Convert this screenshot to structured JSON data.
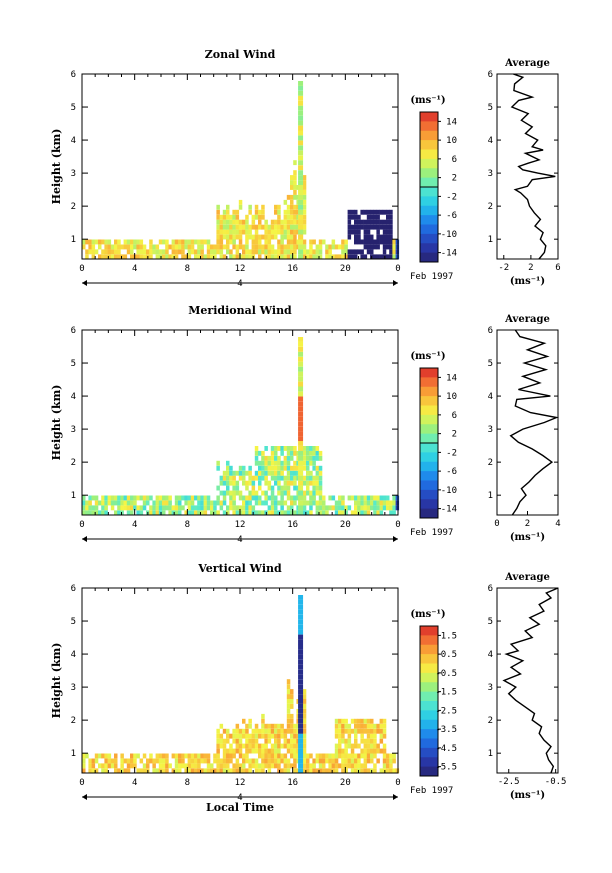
{
  "chart_data": [
    {
      "type": "heatmap",
      "title": "Zonal Wind",
      "xlabel": "",
      "ylabel": "Height (km)",
      "xlim": [
        0,
        24
      ],
      "ylim": [
        0.4,
        6
      ],
      "x_ticks": [
        "0",
        "4",
        "8",
        "12",
        "16",
        "20",
        "0"
      ],
      "y_ticks": [
        "1",
        "2",
        "3",
        "4",
        "5",
        "6"
      ],
      "day_label": "4",
      "date_label": "Feb 1997",
      "colorbar": {
        "unit": "(ms⁻¹)",
        "ticks": [
          "14",
          "10",
          "6",
          "2",
          "-2",
          "-6",
          "-10",
          "-14"
        ],
        "min": -16,
        "max": 16,
        "zero_line": true
      },
      "average": {
        "title": "Average",
        "xlabel": "(ms⁻¹)",
        "x_ticks": [
          "-2",
          "2",
          "6"
        ],
        "xlim": [
          -3,
          6
        ],
        "ylim": [
          0.4,
          6
        ],
        "profile": [
          [
            3.2,
            0.4
          ],
          [
            4.0,
            0.6
          ],
          [
            4.2,
            0.8
          ],
          [
            3.4,
            1.0
          ],
          [
            3.8,
            1.2
          ],
          [
            2.6,
            1.4
          ],
          [
            3.4,
            1.6
          ],
          [
            2.5,
            1.8
          ],
          [
            1.8,
            2.0
          ],
          [
            1.5,
            2.2
          ],
          [
            0.5,
            2.4
          ],
          [
            -0.3,
            2.5
          ],
          [
            1.5,
            2.6
          ],
          [
            2.2,
            2.8
          ],
          [
            5.6,
            2.9
          ],
          [
            3.0,
            3.0
          ],
          [
            0.8,
            3.1
          ],
          [
            0.2,
            3.2
          ],
          [
            1.6,
            3.3
          ],
          [
            3.2,
            3.4
          ],
          [
            1.2,
            3.6
          ],
          [
            3.8,
            3.7
          ],
          [
            2.2,
            3.8
          ],
          [
            3.0,
            4.0
          ],
          [
            1.2,
            4.2
          ],
          [
            2.2,
            4.4
          ],
          [
            0.6,
            4.6
          ],
          [
            1.6,
            4.8
          ],
          [
            -0.8,
            5.0
          ],
          [
            0.2,
            5.2
          ],
          [
            2.2,
            5.3
          ],
          [
            -0.5,
            5.5
          ],
          [
            -0.4,
            5.7
          ],
          [
            0.8,
            5.9
          ],
          [
            -0.6,
            6.0
          ]
        ]
      }
    },
    {
      "type": "heatmap",
      "title": "Meridional Wind",
      "xlabel": "",
      "ylabel": "Height (km)",
      "xlim": [
        0,
        24
      ],
      "ylim": [
        0.4,
        6
      ],
      "x_ticks": [
        "0",
        "4",
        "8",
        "12",
        "16",
        "20",
        "0"
      ],
      "y_ticks": [
        "1",
        "2",
        "3",
        "4",
        "5",
        "6"
      ],
      "day_label": "4",
      "date_label": "Feb 1997",
      "colorbar": {
        "unit": "(ms⁻¹)",
        "ticks": [
          "14",
          "10",
          "6",
          "2",
          "-2",
          "-6",
          "-10",
          "-14"
        ],
        "min": -16,
        "max": 16,
        "zero_line": true
      },
      "average": {
        "title": "Average",
        "xlabel": "(ms⁻¹)",
        "x_ticks": [
          "0",
          "2",
          "4"
        ],
        "xlim": [
          0,
          4
        ],
        "ylim": [
          0.4,
          6
        ],
        "profile": [
          [
            1.0,
            0.4
          ],
          [
            1.3,
            0.6
          ],
          [
            1.5,
            0.8
          ],
          [
            1.9,
            1.0
          ],
          [
            1.6,
            1.2
          ],
          [
            2.1,
            1.4
          ],
          [
            2.5,
            1.6
          ],
          [
            3.0,
            1.8
          ],
          [
            3.6,
            2.0
          ],
          [
            3.0,
            2.2
          ],
          [
            2.3,
            2.4
          ],
          [
            1.4,
            2.6
          ],
          [
            0.9,
            2.8
          ],
          [
            1.7,
            3.0
          ],
          [
            3.1,
            3.2
          ],
          [
            3.9,
            3.35
          ],
          [
            2.2,
            3.5
          ],
          [
            1.2,
            3.7
          ],
          [
            1.3,
            3.9
          ],
          [
            3.5,
            4.0
          ],
          [
            1.4,
            4.2
          ],
          [
            2.8,
            4.4
          ],
          [
            1.7,
            4.6
          ],
          [
            3.2,
            4.8
          ],
          [
            1.8,
            5.0
          ],
          [
            3.3,
            5.2
          ],
          [
            2.0,
            5.4
          ],
          [
            3.1,
            5.6
          ],
          [
            1.5,
            5.8
          ],
          [
            1.2,
            6.0
          ]
        ]
      }
    },
    {
      "type": "heatmap",
      "title": "Vertical Wind",
      "xlabel": "Local Time",
      "ylabel": "Height (km)",
      "xlim": [
        0,
        24
      ],
      "ylim": [
        0.4,
        6
      ],
      "x_ticks": [
        "0",
        "4",
        "8",
        "12",
        "16",
        "20",
        "0"
      ],
      "y_ticks": [
        "1",
        "2",
        "3",
        "4",
        "5",
        "6"
      ],
      "day_label": "4",
      "date_label": "Feb 1997",
      "colorbar": {
        "unit": "(ms⁻¹)",
        "ticks": [
          "1.5",
          "0.5",
          "-0.5",
          "-1.5",
          "-2.5",
          "-3.5",
          "-4.5",
          "-5.5"
        ],
        "min": -6,
        "max": 2,
        "zero_line": false
      },
      "average": {
        "title": "Average",
        "xlabel": "(ms⁻¹)",
        "x_ticks": [
          "-2.5",
          "-0.5"
        ],
        "xlim": [
          -3,
          -0.4
        ],
        "ylim": [
          0.4,
          6
        ],
        "profile": [
          [
            -0.7,
            0.4
          ],
          [
            -0.6,
            0.6
          ],
          [
            -0.8,
            0.8
          ],
          [
            -0.9,
            1.0
          ],
          [
            -0.7,
            1.2
          ],
          [
            -1.0,
            1.4
          ],
          [
            -1.2,
            1.6
          ],
          [
            -1.1,
            1.8
          ],
          [
            -1.5,
            2.0
          ],
          [
            -1.4,
            2.2
          ],
          [
            -1.8,
            2.4
          ],
          [
            -2.2,
            2.6
          ],
          [
            -2.5,
            2.8
          ],
          [
            -2.2,
            3.0
          ],
          [
            -2.7,
            3.2
          ],
          [
            -2.0,
            3.4
          ],
          [
            -2.4,
            3.6
          ],
          [
            -1.9,
            3.8
          ],
          [
            -2.6,
            4.0
          ],
          [
            -2.1,
            4.1
          ],
          [
            -2.4,
            4.3
          ],
          [
            -1.5,
            4.5
          ],
          [
            -1.8,
            4.7
          ],
          [
            -1.2,
            4.9
          ],
          [
            -1.6,
            5.1
          ],
          [
            -1.0,
            5.3
          ],
          [
            -1.2,
            5.5
          ],
          [
            -0.7,
            5.7
          ],
          [
            -0.9,
            5.85
          ],
          [
            -0.4,
            6.0
          ]
        ]
      }
    }
  ]
}
